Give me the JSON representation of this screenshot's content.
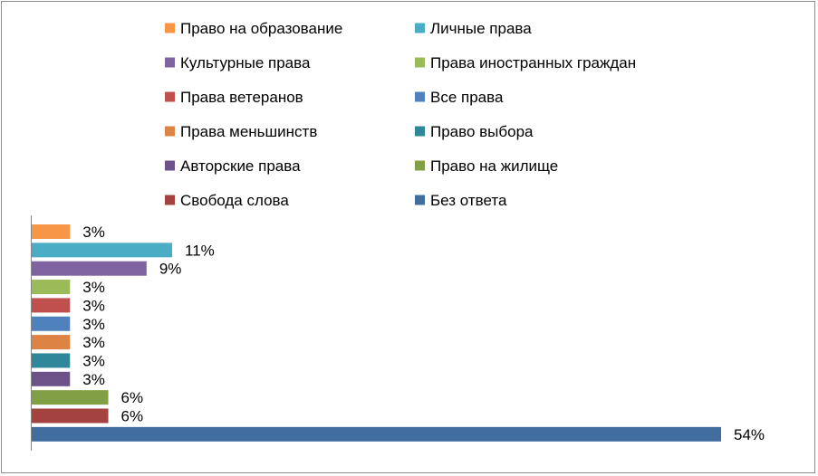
{
  "chart_data": {
    "type": "bar",
    "orientation": "horizontal",
    "value_format": "percent",
    "xlim": [
      0,
      0.56
    ],
    "grid": false,
    "legend_position": "top",
    "categories": [
      "Право на образование",
      "Личные права",
      "Культурные права",
      "Права иностранных граждан",
      "Права ветеранов",
      "Все права",
      "Права меньшинств",
      "Право выбора",
      "Авторские права",
      "Право на жилище",
      "Свобода слова",
      "Без ответа"
    ],
    "values": [
      0.03,
      0.11,
      0.09,
      0.03,
      0.03,
      0.03,
      0.03,
      0.03,
      0.03,
      0.06,
      0.06,
      0.54
    ],
    "data_labels": [
      "3%",
      "11%",
      "9%",
      "3%",
      "3%",
      "3%",
      "3%",
      "3%",
      "3%",
      "6%",
      "6%",
      "54%"
    ],
    "colors": [
      "#F79646",
      "#4BACC6",
      "#8064A2",
      "#9BBB59",
      "#C0504D",
      "#4F81BD",
      "#DD8444",
      "#31879A",
      "#6C5289",
      "#81A046",
      "#A4423F",
      "#416D9F"
    ]
  }
}
